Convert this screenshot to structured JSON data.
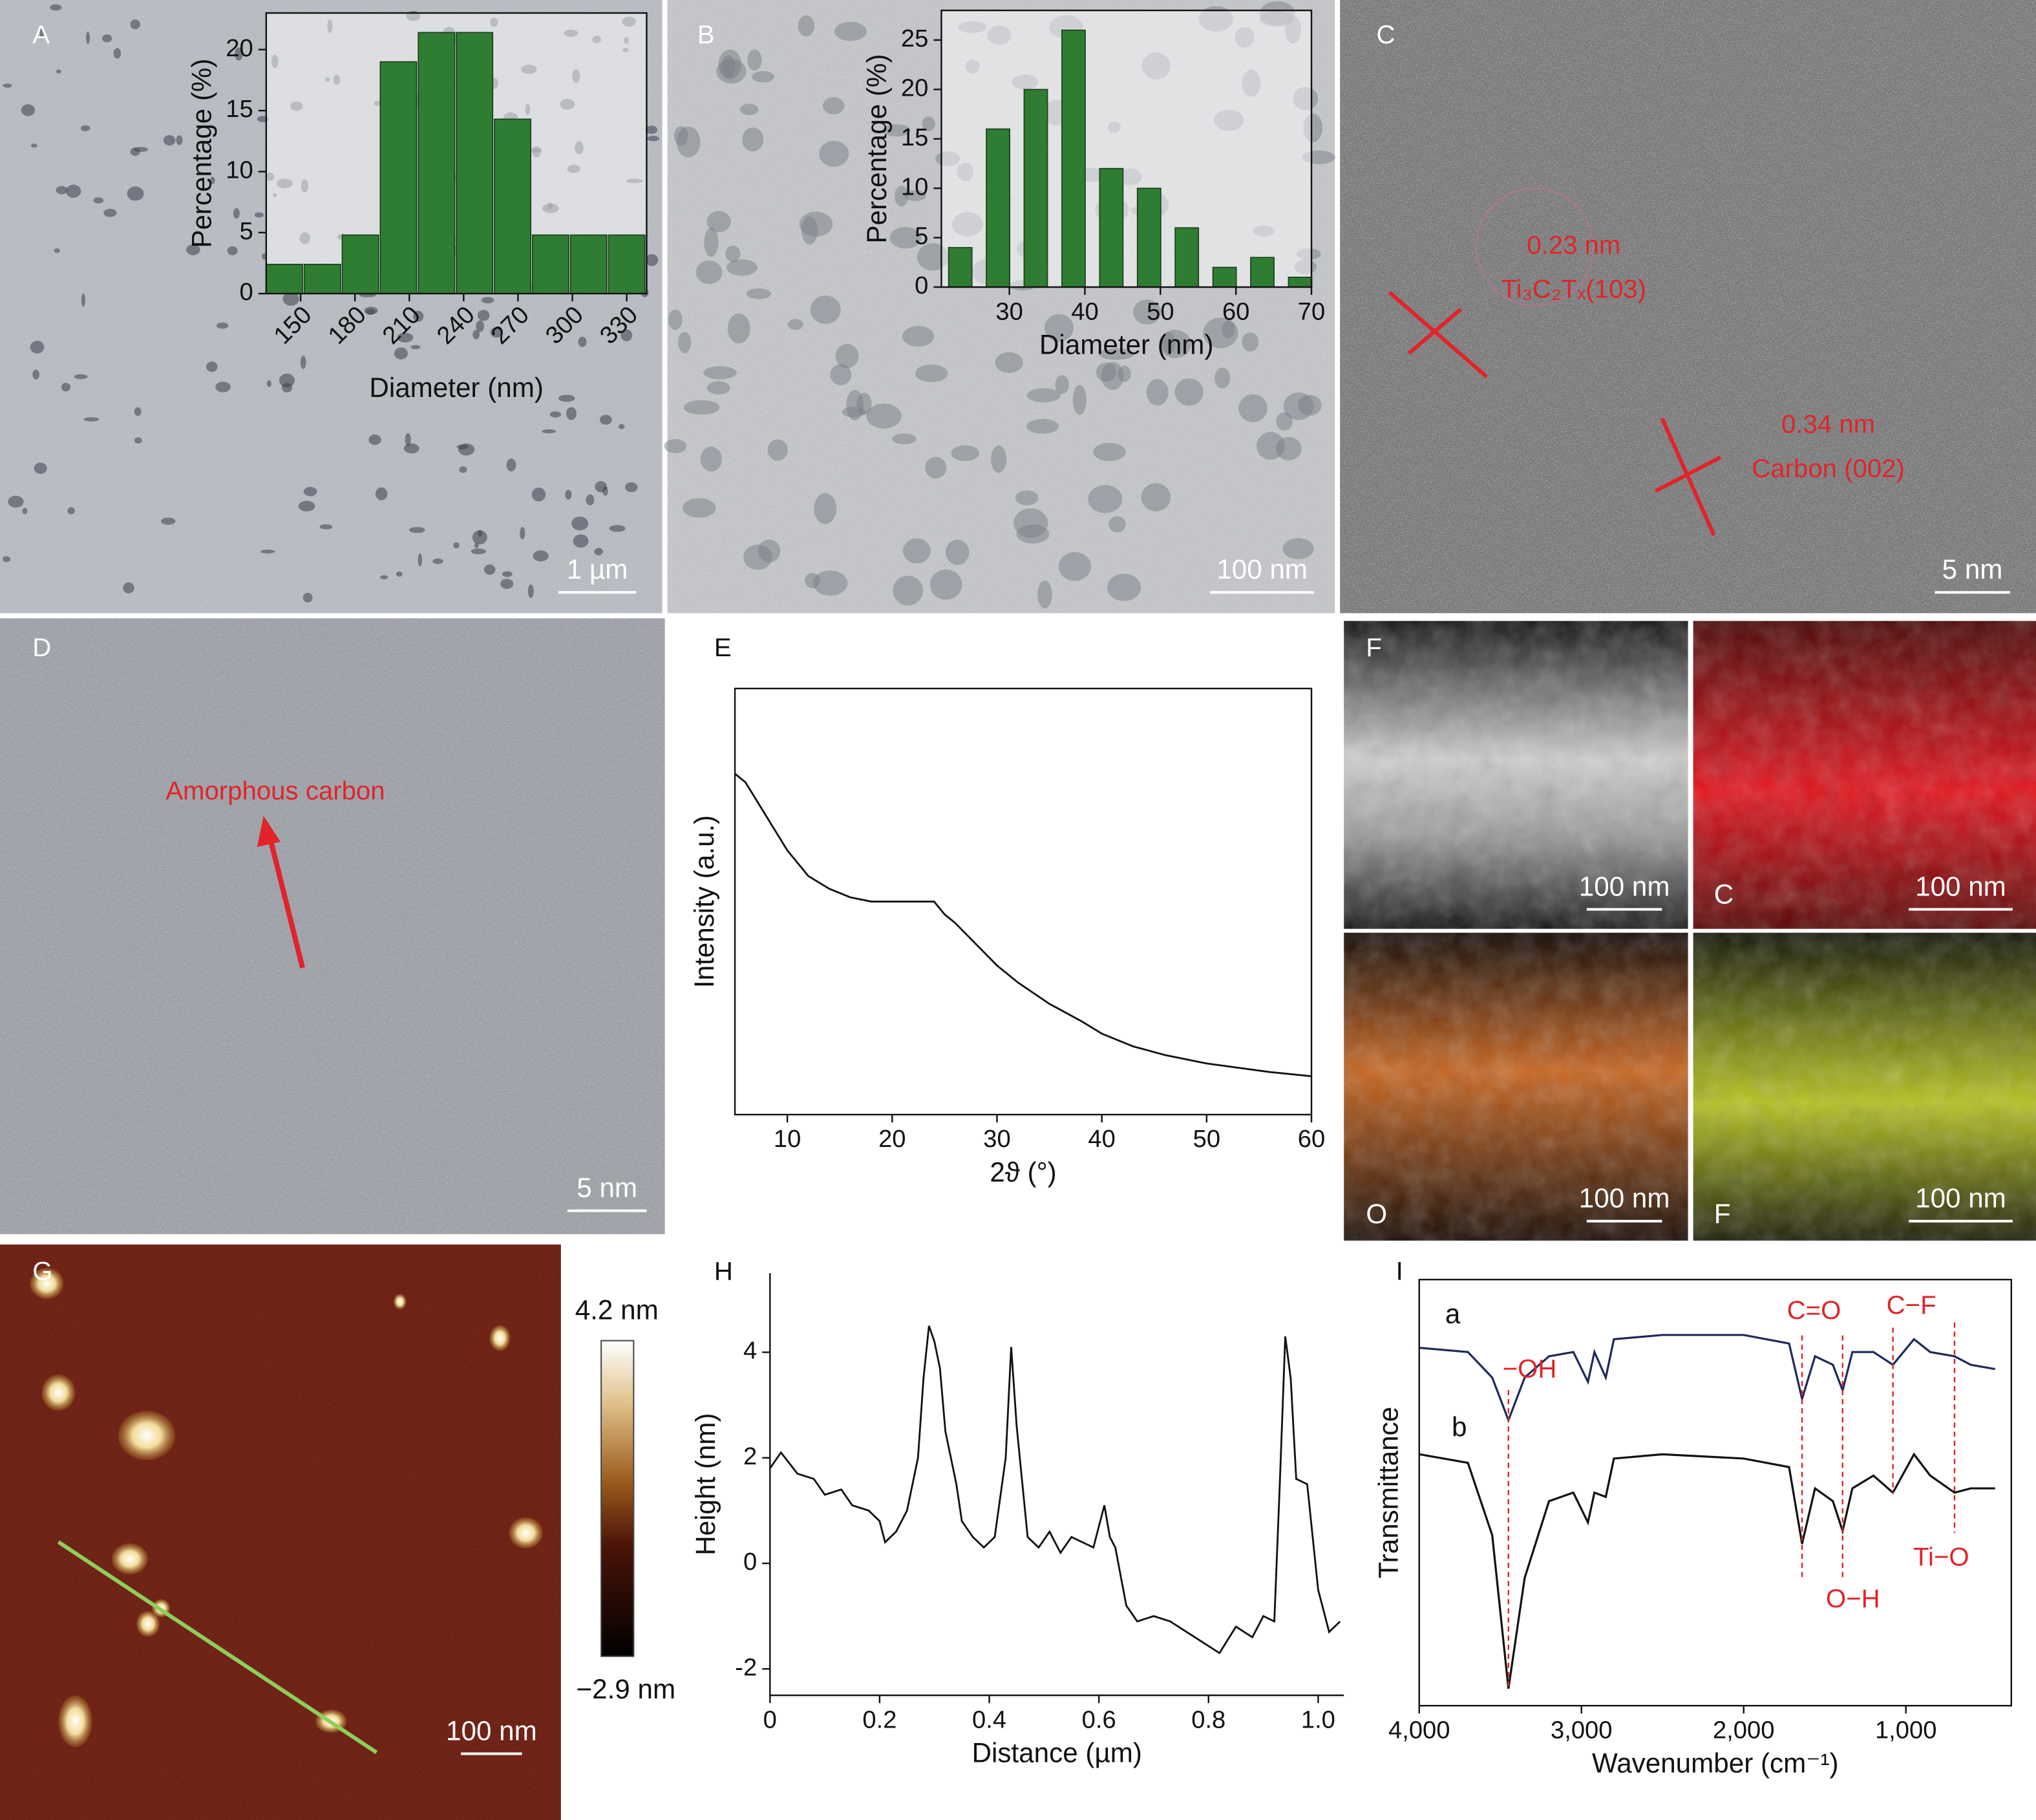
{
  "panel_labels": [
    "A",
    "B",
    "C",
    "D",
    "E",
    "F",
    "G",
    "H",
    "I"
  ],
  "scale_bars": [
    "1 µm",
    "100 nm",
    "5 nm",
    "5 nm",
    "100 nm",
    "100 nm",
    "100 nm",
    "100 nm",
    "100 nm"
  ],
  "lattice": [
    {
      "spacing": "0.23 nm",
      "plane": "Ti₃C₂Tₓ(103)"
    },
    {
      "spacing": "0.34 nm",
      "plane": "Carbon (002)"
    }
  ],
  "amorphous_label": "Amorphous carbon",
  "eds_elements": [
    "C",
    "O",
    "F"
  ],
  "colorbar": {
    "max": "4.2 nm",
    "min": "−2.9 nm"
  },
  "chart_data": [
    {
      "type": "bar",
      "x_label": "Diameter (nm)",
      "y_label": "Percentage (%)",
      "color": "#2e7d32",
      "x": [
        141,
        162,
        183,
        204,
        225,
        246,
        267,
        288,
        309,
        330
      ],
      "values": [
        2.4,
        2.4,
        4.8,
        19,
        21.4,
        21.4,
        14.3,
        4.8,
        4.8,
        4.8
      ],
      "xlim": [
        131,
        341
      ],
      "xticks": [
        150,
        180,
        210,
        240,
        270,
        300,
        330
      ],
      "ylim": [
        0,
        23
      ],
      "yticks": [
        0,
        5,
        10,
        15,
        20
      ]
    },
    {
      "type": "bar",
      "x_label": "Diameter (nm)",
      "y_label": "Percentage (%)",
      "color": "#2e7d32",
      "x": [
        23.5,
        28.5,
        33.5,
        38.5,
        43.5,
        48.5,
        53.5,
        58.5,
        63.5,
        68.5
      ],
      "values": [
        4,
        16,
        20,
        26,
        12,
        10,
        6,
        2,
        3,
        1
      ],
      "xlim": [
        21,
        70
      ],
      "xticks": [
        30,
        40,
        50,
        60,
        70
      ],
      "ylim": [
        0,
        28
      ],
      "yticks": [
        0,
        5,
        10,
        15,
        20,
        25
      ]
    },
    {
      "type": "line",
      "x_label": "2ϑ (°)",
      "y_label": "Intensity (a.u.)",
      "color": "#111111",
      "x": [
        5,
        6,
        7,
        8,
        10,
        12,
        14,
        16,
        18,
        20,
        22,
        24,
        25,
        26,
        28,
        30,
        32,
        35,
        38,
        40,
        43,
        46,
        50,
        53,
        56,
        60
      ],
      "values": [
        0.8,
        0.78,
        0.74,
        0.7,
        0.62,
        0.56,
        0.53,
        0.51,
        0.5,
        0.5,
        0.5,
        0.5,
        0.47,
        0.45,
        0.4,
        0.35,
        0.31,
        0.26,
        0.22,
        0.19,
        0.16,
        0.14,
        0.12,
        0.11,
        0.1,
        0.09
      ],
      "xlim": [
        5,
        60
      ],
      "xticks": [
        10,
        20,
        30,
        40,
        50,
        60
      ],
      "ylim": [
        0,
        1
      ],
      "yticks": []
    },
    {
      "type": "line",
      "x_label": "Distance (µm)",
      "y_label": "Height (nm)",
      "color": "#111111",
      "x": [
        0,
        0.02,
        0.05,
        0.08,
        0.1,
        0.13,
        0.15,
        0.18,
        0.2,
        0.21,
        0.23,
        0.25,
        0.27,
        0.28,
        0.29,
        0.3,
        0.31,
        0.32,
        0.34,
        0.35,
        0.37,
        0.39,
        0.41,
        0.43,
        0.44,
        0.45,
        0.47,
        0.49,
        0.51,
        0.53,
        0.55,
        0.57,
        0.59,
        0.61,
        0.62,
        0.63,
        0.65,
        0.67,
        0.7,
        0.73,
        0.76,
        0.79,
        0.82,
        0.85,
        0.88,
        0.9,
        0.92,
        0.93,
        0.94,
        0.95,
        0.96,
        0.98,
        1.0,
        1.02,
        1.04
      ],
      "values": [
        1.8,
        2.1,
        1.7,
        1.6,
        1.3,
        1.4,
        1.1,
        1.0,
        0.8,
        0.4,
        0.6,
        1.0,
        2.0,
        3.5,
        4.5,
        4.2,
        3.7,
        2.5,
        1.5,
        0.8,
        0.5,
        0.3,
        0.5,
        2.0,
        4.1,
        2.6,
        0.5,
        0.3,
        0.6,
        0.2,
        0.5,
        0.4,
        0.3,
        1.1,
        0.5,
        0.3,
        -0.8,
        -1.1,
        -1.0,
        -1.1,
        -1.3,
        -1.5,
        -1.7,
        -1.2,
        -1.4,
        -1.0,
        -1.1,
        1.5,
        4.3,
        3.5,
        1.6,
        1.5,
        -0.5,
        -1.3,
        -1.1
      ],
      "xlim": [
        0,
        1.047
      ],
      "xticks": [
        0,
        0.2,
        0.4,
        0.6,
        0.8,
        {
          "value": 1,
          "label": "1.0"
        }
      ],
      "ylim": [
        -2.5,
        5.5
      ],
      "yticks": [
        -2,
        0,
        2,
        4
      ]
    },
    {
      "type": "line",
      "x_label": "Wavenumber (cm⁻¹)",
      "y_label": "Transmittance",
      "x": [
        4000,
        3700,
        3550,
        3450,
        3350,
        3200,
        3050,
        2960,
        2920,
        2850,
        2800,
        2500,
        2000,
        1720,
        1640,
        1560,
        1450,
        1390,
        1330,
        1200,
        1080,
        950,
        850,
        700,
        600,
        450
      ],
      "series": [
        {
          "name": "a",
          "color": "#1f2a5a",
          "values": [
            0.84,
            0.83,
            0.77,
            0.67,
            0.77,
            0.82,
            0.83,
            0.76,
            0.83,
            0.77,
            0.86,
            0.87,
            0.87,
            0.85,
            0.72,
            0.82,
            0.8,
            0.74,
            0.83,
            0.83,
            0.8,
            0.86,
            0.83,
            0.82,
            0.8,
            0.79
          ]
        },
        {
          "name": "b",
          "color": "#111111",
          "values": [
            0.59,
            0.57,
            0.4,
            0.04,
            0.3,
            0.48,
            0.5,
            0.43,
            0.5,
            0.49,
            0.58,
            0.59,
            0.58,
            0.56,
            0.38,
            0.51,
            0.48,
            0.41,
            0.51,
            0.54,
            0.5,
            0.59,
            0.54,
            0.5,
            0.51,
            0.51
          ]
        }
      ],
      "peaks": [
        {
          "label": "−OH",
          "x": 3450
        },
        {
          "label": "C=O",
          "x": 1640
        },
        {
          "label": "O−H",
          "x": 1390
        },
        {
          "label": "C−F",
          "x": 1080
        },
        {
          "label": "Ti−O",
          "x": 700
        }
      ],
      "xlim": [
        4000,
        350
      ],
      "xticks": [
        {
          "value": 4000,
          "label": "4,000"
        },
        {
          "value": 3000,
          "label": "3,000"
        },
        {
          "value": 2000,
          "label": "2,000"
        },
        {
          "value": 1000,
          "label": "1,000"
        }
      ],
      "ylim": [
        0,
        1
      ],
      "yticks": []
    }
  ]
}
